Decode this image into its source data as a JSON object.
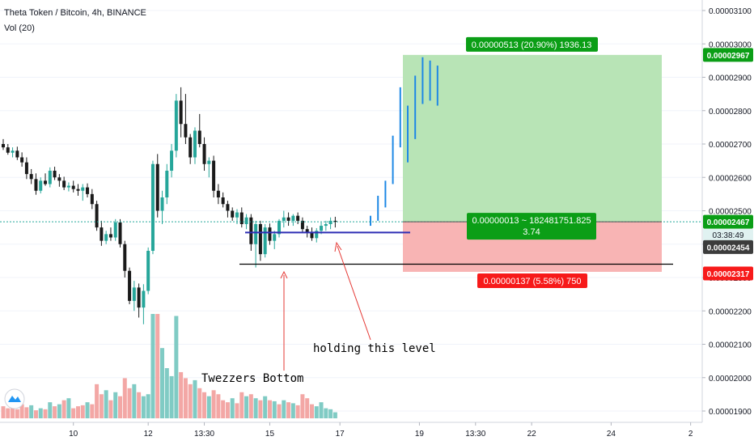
{
  "header": {
    "title": "Theta Token / Bitcoin, 4h, BINANCE",
    "volume_label": "Vol (20)"
  },
  "colors": {
    "up": "#26a69a",
    "down": "#1a1a1a",
    "vol_up": "#80cbc4",
    "vol_down": "#f3a7a5",
    "profit_zone": "#b8e4b6",
    "loss_zone": "#f8b4b4",
    "profit_tag": "#0b9e16",
    "loss_tag": "#f71a1a",
    "projection": "#1e88e5",
    "support_line": "#2f2fb5",
    "annotation_arrow": "#e53935",
    "price_line": "#26a69a"
  },
  "chart_data": {
    "type": "candlestick",
    "price_axis": {
      "ticks": [
        3.1e-05,
        3e-05,
        2.9e-05,
        2.8e-05,
        2.7e-05,
        2.6e-05,
        2.5e-05,
        2.4e-05,
        2.3e-05,
        2.2e-05,
        2.1e-05,
        2e-05,
        1.9e-05
      ],
      "tick_labels": [
        "0.00003100",
        "0.00003000",
        "0.00002900",
        "0.00002800",
        "0.00002700",
        "0.00002600",
        "0.00002500",
        "0.00002400",
        "0.00002300",
        "0.00002200",
        "0.00002100",
        "0.00002000",
        "0.00001900"
      ],
      "range": [
        1.885e-05,
        3.125e-05
      ]
    },
    "time_axis": {
      "labels": [
        "10",
        "12",
        "13:30",
        "15",
        "17",
        "19",
        "13:30",
        "22",
        "24",
        "2"
      ],
      "label_bar_index": [
        15,
        31,
        43,
        57,
        72,
        89,
        101,
        113,
        130,
        147
      ]
    },
    "candles": [
      {
        "o": 2.7e-05,
        "h": 2.715e-05,
        "l": 2.682e-05,
        "c": 2.69e-05
      },
      {
        "o": 2.69e-05,
        "h": 2.7e-05,
        "l": 2.668e-05,
        "c": 2.674e-05
      },
      {
        "o": 2.674e-05,
        "h": 2.69e-05,
        "l": 2.66e-05,
        "c": 2.68e-05
      },
      {
        "o": 2.68e-05,
        "h": 2.692e-05,
        "l": 2.652e-05,
        "c": 2.66e-05
      },
      {
        "o": 2.66e-05,
        "h": 2.675e-05,
        "l": 2.632e-05,
        "c": 2.645e-05
      },
      {
        "o": 2.645e-05,
        "h": 2.66e-05,
        "l": 2.595e-05,
        "c": 2.61e-05
      },
      {
        "o": 2.61e-05,
        "h": 2.625e-05,
        "l": 2.58e-05,
        "c": 2.595e-05
      },
      {
        "o": 2.595e-05,
        "h": 2.612e-05,
        "l": 2.548e-05,
        "c": 2.56e-05
      },
      {
        "o": 2.56e-05,
        "h": 2.6e-05,
        "l": 2.552e-05,
        "c": 2.59e-05
      },
      {
        "o": 2.59e-05,
        "h": 2.612e-05,
        "l": 2.575e-05,
        "c": 2.58e-05
      },
      {
        "o": 2.58e-05,
        "h": 2.63e-05,
        "l": 2.57e-05,
        "c": 2.62e-05
      },
      {
        "o": 2.62e-05,
        "h": 2.632e-05,
        "l": 2.592e-05,
        "c": 2.6e-05
      },
      {
        "o": 2.6e-05,
        "h": 2.61e-05,
        "l": 2.572e-05,
        "c": 2.59e-05
      },
      {
        "o": 2.59e-05,
        "h": 2.602e-05,
        "l": 2.562e-05,
        "c": 2.57e-05
      },
      {
        "o": 2.57e-05,
        "h": 2.585e-05,
        "l": 2.558e-05,
        "c": 2.575e-05
      },
      {
        "o": 2.575e-05,
        "h": 2.59e-05,
        "l": 2.555e-05,
        "c": 2.565e-05
      },
      {
        "o": 2.565e-05,
        "h": 2.58e-05,
        "l": 2.545e-05,
        "c": 2.56e-05
      },
      {
        "o": 2.56e-05,
        "h": 2.58e-05,
        "l": 2.53e-05,
        "c": 2.57e-05
      },
      {
        "o": 2.57e-05,
        "h": 2.582e-05,
        "l": 2.54e-05,
        "c": 2.55e-05
      },
      {
        "o": 2.55e-05,
        "h": 2.565e-05,
        "l": 2.505e-05,
        "c": 2.52e-05
      },
      {
        "o": 2.52e-05,
        "h": 2.53e-05,
        "l": 2.44e-05,
        "c": 2.45e-05
      },
      {
        "o": 2.45e-05,
        "h": 2.47e-05,
        "l": 2.395e-05,
        "c": 2.41e-05
      },
      {
        "o": 2.41e-05,
        "h": 2.44e-05,
        "l": 2.4e-05,
        "c": 2.43e-05
      },
      {
        "o": 2.43e-05,
        "h": 2.45e-05,
        "l": 2.41e-05,
        "c": 2.42e-05
      },
      {
        "o": 2.42e-05,
        "h": 2.475e-05,
        "l": 2.41e-05,
        "c": 2.465e-05
      },
      {
        "o": 2.465e-05,
        "h": 2.475e-05,
        "l": 2.39e-05,
        "c": 2.4e-05
      },
      {
        "o": 2.4e-05,
        "h": 2.41e-05,
        "l": 2.3e-05,
        "c": 2.32e-05
      },
      {
        "o": 2.32e-05,
        "h": 2.33e-05,
        "l": 2.22e-05,
        "c": 2.23e-05
      },
      {
        "o": 2.23e-05,
        "h": 2.29e-05,
        "l": 2.2e-05,
        "c": 2.27e-05
      },
      {
        "o": 2.27e-05,
        "h": 2.282e-05,
        "l": 2.18e-05,
        "c": 2.21e-05
      },
      {
        "o": 2.21e-05,
        "h": 2.28e-05,
        "l": 2.16e-05,
        "c": 2.26e-05
      },
      {
        "o": 2.26e-05,
        "h": 2.39e-05,
        "l": 2.25e-05,
        "c": 2.38e-05
      },
      {
        "o": 2.38e-05,
        "h": 2.65e-05,
        "l": 2.37e-05,
        "c": 2.64e-05
      },
      {
        "o": 2.64e-05,
        "h": 2.67e-05,
        "l": 2.48e-05,
        "c": 2.5e-05
      },
      {
        "o": 2.5e-05,
        "h": 2.56e-05,
        "l": 2.46e-05,
        "c": 2.54e-05
      },
      {
        "o": 2.54e-05,
        "h": 2.64e-05,
        "l": 2.52e-05,
        "c": 2.62e-05
      },
      {
        "o": 2.62e-05,
        "h": 2.7e-05,
        "l": 2.6e-05,
        "c": 2.68e-05
      },
      {
        "o": 2.68e-05,
        "h": 2.85e-05,
        "l": 2.66e-05,
        "c": 2.83e-05
      },
      {
        "o": 2.83e-05,
        "h": 2.87e-05,
        "l": 2.72e-05,
        "c": 2.76e-05
      },
      {
        "o": 2.76e-05,
        "h": 2.85e-05,
        "l": 2.7e-05,
        "c": 2.72e-05
      },
      {
        "o": 2.72e-05,
        "h": 2.73e-05,
        "l": 2.64e-05,
        "c": 2.66e-05
      },
      {
        "o": 2.66e-05,
        "h": 2.75e-05,
        "l": 2.64e-05,
        "c": 2.74e-05
      },
      {
        "o": 2.74e-05,
        "h": 2.79e-05,
        "l": 2.69e-05,
        "c": 2.7e-05
      },
      {
        "o": 2.7e-05,
        "h": 2.72e-05,
        "l": 2.62e-05,
        "c": 2.64e-05
      },
      {
        "o": 2.64e-05,
        "h": 2.66e-05,
        "l": 2.6e-05,
        "c": 2.65e-05
      },
      {
        "o": 2.65e-05,
        "h": 2.665e-05,
        "l": 2.54e-05,
        "c": 2.56e-05
      },
      {
        "o": 2.56e-05,
        "h": 2.58e-05,
        "l": 2.52e-05,
        "c": 2.54e-05
      },
      {
        "o": 2.54e-05,
        "h": 2.555e-05,
        "l": 2.51e-05,
        "c": 2.52e-05
      },
      {
        "o": 2.52e-05,
        "h": 2.53e-05,
        "l": 2.48e-05,
        "c": 2.5e-05
      },
      {
        "o": 2.5e-05,
        "h": 2.51e-05,
        "l": 2.47e-05,
        "c": 2.48e-05
      },
      {
        "o": 2.48e-05,
        "h": 2.505e-05,
        "l": 2.46e-05,
        "c": 2.495e-05
      },
      {
        "o": 2.495e-05,
        "h": 2.51e-05,
        "l": 2.45e-05,
        "c": 2.46e-05
      },
      {
        "o": 2.46e-05,
        "h": 2.49e-05,
        "l": 2.445e-05,
        "c": 2.48e-05
      },
      {
        "o": 2.48e-05,
        "h": 2.49e-05,
        "l": 2.38e-05,
        "c": 2.4e-05
      },
      {
        "o": 2.4e-05,
        "h": 2.47e-05,
        "l": 2.33e-05,
        "c": 2.46e-05
      },
      {
        "o": 2.46e-05,
        "h": 2.47e-05,
        "l": 2.35e-05,
        "c": 2.37e-05
      },
      {
        "o": 2.37e-05,
        "h": 2.46e-05,
        "l": 2.36e-05,
        "c": 2.45e-05
      },
      {
        "o": 2.45e-05,
        "h": 2.462e-05,
        "l": 2.398e-05,
        "c": 2.41e-05
      },
      {
        "o": 2.41e-05,
        "h": 2.44e-05,
        "l": 2.385e-05,
        "c": 2.43e-05
      },
      {
        "o": 2.43e-05,
        "h": 2.475e-05,
        "l": 2.42e-05,
        "c": 2.47e-05
      },
      {
        "o": 2.47e-05,
        "h": 2.5e-05,
        "l": 2.45e-05,
        "c": 2.48e-05
      },
      {
        "o": 2.48e-05,
        "h": 2.495e-05,
        "l": 2.455e-05,
        "c": 2.47e-05
      },
      {
        "o": 2.47e-05,
        "h": 2.49e-05,
        "l": 2.455e-05,
        "c": 2.485e-05
      },
      {
        "o": 2.485e-05,
        "h": 2.495e-05,
        "l": 2.46e-05,
        "c": 2.47e-05
      },
      {
        "o": 2.47e-05,
        "h": 2.48e-05,
        "l": 2.435e-05,
        "c": 2.445e-05
      },
      {
        "o": 2.445e-05,
        "h": 2.455e-05,
        "l": 2.42e-05,
        "c": 2.435e-05
      },
      {
        "o": 2.435e-05,
        "h": 2.45e-05,
        "l": 2.41e-05,
        "c": 2.418e-05
      },
      {
        "o": 2.418e-05,
        "h": 2.448e-05,
        "l": 2.405e-05,
        "c": 2.44e-05
      },
      {
        "o": 2.44e-05,
        "h": 2.465e-05,
        "l": 2.43e-05,
        "c": 2.455e-05
      },
      {
        "o": 2.455e-05,
        "h": 2.47e-05,
        "l": 2.44e-05,
        "c": 2.46e-05
      },
      {
        "o": 2.46e-05,
        "h": 2.48e-05,
        "l": 2.445e-05,
        "c": 2.47e-05
      },
      {
        "o": 2.47e-05,
        "h": 2.482e-05,
        "l": 2.45e-05,
        "c": 2.467e-05
      }
    ],
    "volume": [
      {
        "v": 12,
        "up": false
      },
      {
        "v": 10,
        "up": false
      },
      {
        "v": 15,
        "up": false
      },
      {
        "v": 9,
        "up": false
      },
      {
        "v": 14,
        "up": false
      },
      {
        "v": 11,
        "up": false
      },
      {
        "v": 13,
        "up": true
      },
      {
        "v": 8,
        "up": false
      },
      {
        "v": 10,
        "up": true
      },
      {
        "v": 9,
        "up": false
      },
      {
        "v": 16,
        "up": true
      },
      {
        "v": 12,
        "up": false
      },
      {
        "v": 14,
        "up": true
      },
      {
        "v": 18,
        "up": false
      },
      {
        "v": 20,
        "up": true
      },
      {
        "v": 10,
        "up": false
      },
      {
        "v": 12,
        "up": false
      },
      {
        "v": 13,
        "up": false
      },
      {
        "v": 16,
        "up": true
      },
      {
        "v": 14,
        "up": false
      },
      {
        "v": 34,
        "up": false
      },
      {
        "v": 24,
        "up": false
      },
      {
        "v": 28,
        "up": true
      },
      {
        "v": 18,
        "up": false
      },
      {
        "v": 26,
        "up": true
      },
      {
        "v": 22,
        "up": false
      },
      {
        "v": 40,
        "up": false
      },
      {
        "v": 30,
        "up": false
      },
      {
        "v": 34,
        "up": true
      },
      {
        "v": 26,
        "up": false
      },
      {
        "v": 22,
        "up": true
      },
      {
        "v": 24,
        "up": true
      },
      {
        "v": 104,
        "up": true
      },
      {
        "v": 104,
        "up": false
      },
      {
        "v": 70,
        "up": true
      },
      {
        "v": 50,
        "up": true
      },
      {
        "v": 42,
        "up": true
      },
      {
        "v": 102,
        "up": true
      },
      {
        "v": 46,
        "up": false
      },
      {
        "v": 40,
        "up": false
      },
      {
        "v": 34,
        "up": false
      },
      {
        "v": 38,
        "up": true
      },
      {
        "v": 30,
        "up": false
      },
      {
        "v": 26,
        "up": false
      },
      {
        "v": 22,
        "up": true
      },
      {
        "v": 28,
        "up": false
      },
      {
        "v": 24,
        "up": false
      },
      {
        "v": 18,
        "up": false
      },
      {
        "v": 16,
        "up": false
      },
      {
        "v": 20,
        "up": true
      },
      {
        "v": 15,
        "up": false
      },
      {
        "v": 26,
        "up": false
      },
      {
        "v": 22,
        "up": true
      },
      {
        "v": 24,
        "up": false
      },
      {
        "v": 20,
        "up": true
      },
      {
        "v": 18,
        "up": false
      },
      {
        "v": 22,
        "up": true
      },
      {
        "v": 18,
        "up": false
      },
      {
        "v": 17,
        "up": true
      },
      {
        "v": 14,
        "up": false
      },
      {
        "v": 18,
        "up": true
      },
      {
        "v": 16,
        "up": false
      },
      {
        "v": 15,
        "up": true
      },
      {
        "v": 13,
        "up": false
      },
      {
        "v": 24,
        "up": false
      },
      {
        "v": 20,
        "up": false
      },
      {
        "v": 14,
        "up": false
      },
      {
        "v": 12,
        "up": true
      },
      {
        "v": 16,
        "up": true
      },
      {
        "v": 10,
        "up": true
      },
      {
        "v": 9,
        "up": true
      },
      {
        "v": 6,
        "up": true
      }
    ],
    "projection_bars": [
      {
        "top": 2.485e-05,
        "bottom": 2.455e-05
      },
      {
        "top": 2.545e-05,
        "bottom": 2.47e-05
      },
      {
        "top": 2.59e-05,
        "bottom": 2.51e-05
      },
      {
        "top": 2.725e-05,
        "bottom": 2.58e-05
      },
      {
        "top": 2.87e-05,
        "bottom": 2.69e-05
      },
      {
        "top": 2.815e-05,
        "bottom": 2.645e-05
      },
      {
        "top": 2.905e-05,
        "bottom": 2.715e-05
      },
      {
        "top": 2.96e-05,
        "bottom": 2.82e-05
      },
      {
        "top": 2.95e-05,
        "bottom": 2.83e-05
      },
      {
        "top": 2.935e-05,
        "bottom": 2.815e-05
      }
    ],
    "position": {
      "entry": 2.467e-05,
      "target": 2.967e-05,
      "stop": 2.317e-05,
      "target_label": "0.00000513 (20.90%) 1936.13",
      "center_label_line1": "0.00000013 ~ 182481751.825",
      "center_label_line2": "3.74",
      "stop_label": "0.00000137 (5.58%) 750"
    },
    "support_level": 2.435e-05,
    "bottom_level": 2.34e-05,
    "price_tags": {
      "target": "0.00002967",
      "current": "0.00002467",
      "countdown": "03:38:49",
      "dark": "0.00002454",
      "stop": "0.00002317"
    },
    "annotations": {
      "tweezers": "Twezzers Bottom",
      "holding": "holding this level"
    }
  }
}
